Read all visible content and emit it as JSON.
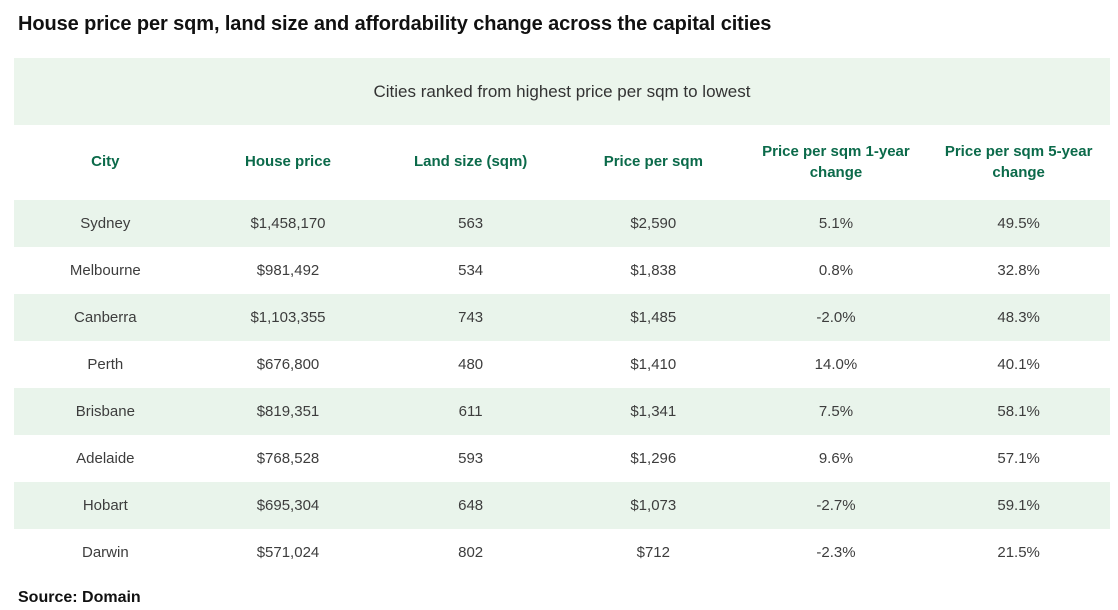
{
  "title": "House price per sqm, land size and affordability change across the capital cities",
  "subtitle": "Cities ranked from highest price per sqm to lowest",
  "source": "Source: Domain",
  "colors": {
    "header_text_green": "#0B6A4A",
    "stripe_green": "#E9F4EB",
    "banner_green": "#EBF5EC",
    "body_text": "#3D3D3D",
    "title_text": "#111111"
  },
  "chart_data": {
    "type": "table",
    "title": "House price per sqm, land size and affordability change across the capital cities",
    "subtitle": "Cities ranked from highest price per sqm to lowest",
    "columns": [
      "City",
      "House price",
      "Land size (sqm)",
      "Price per sqm",
      "Price per sqm 1-year change",
      "Price per sqm 5-year change"
    ],
    "rows": [
      [
        "Sydney",
        "$1,458,170",
        "563",
        "$2,590",
        "5.1%",
        "49.5%"
      ],
      [
        "Melbourne",
        "$981,492",
        "534",
        "$1,838",
        "0.8%",
        "32.8%"
      ],
      [
        "Canberra",
        "$1,103,355",
        "743",
        "$1,485",
        "-2.0%",
        "48.3%"
      ],
      [
        "Perth",
        "$676,800",
        "480",
        "$1,410",
        "14.0%",
        "40.1%"
      ],
      [
        "Brisbane",
        "$819,351",
        "611",
        "$1,341",
        "7.5%",
        "58.1%"
      ],
      [
        "Adelaide",
        "$768,528",
        "593",
        "$1,296",
        "9.6%",
        "57.1%"
      ],
      [
        "Hobart",
        "$695,304",
        "648",
        "$1,073",
        "-2.7%",
        "59.1%"
      ],
      [
        "Darwin",
        "$571,024",
        "802",
        "$712",
        "-2.3%",
        "21.5%"
      ]
    ],
    "source": "Source: Domain"
  }
}
